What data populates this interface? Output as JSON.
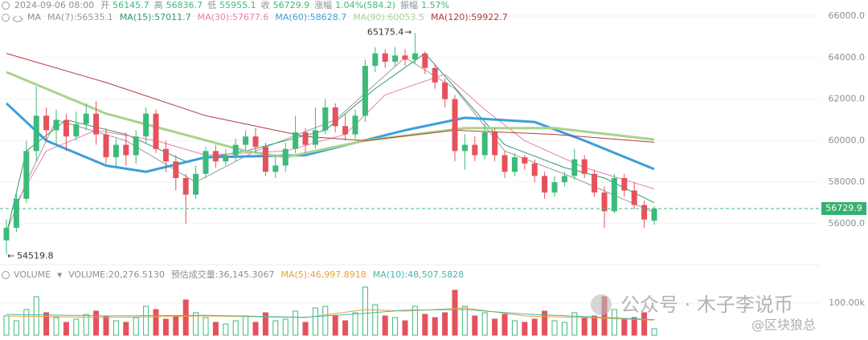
{
  "chart_data": {
    "type": "candlestick",
    "date": "2024-09-06 08:00",
    "quote_labels": [
      "开",
      "高",
      "低",
      "收",
      "涨幅",
      "振幅"
    ],
    "change": "1.04%(584.2)",
    "amplitude": "1.57%",
    "ma_title": "MA",
    "up_color": "#3dba7a",
    "down_color": "#e5525c",
    "candles": {
      "open": [
        55200,
        55800,
        57200,
        59500,
        61200,
        60500,
        61000,
        60200,
        60800,
        61300,
        60300,
        59200,
        59800,
        59300,
        60200,
        61300,
        59600,
        59000,
        58200,
        57400,
        58400,
        59500,
        59000,
        59300,
        59800,
        60200,
        59700,
        58500,
        58800,
        59600,
        60400,
        59800,
        60500,
        61600,
        60700,
        60300,
        61200,
        63600,
        64200,
        63800,
        64100,
        63900,
        64200,
        63500,
        62800,
        62000,
        59500,
        59800,
        59300,
        60400,
        59300,
        58500,
        59200,
        58900,
        58300,
        57500,
        58000,
        58300,
        59100,
        58400,
        57500,
        56600,
        58200,
        57600,
        56900,
        56145.7
      ],
      "high": [
        56200,
        57600,
        60000,
        62600,
        61600,
        61500,
        61300,
        61400,
        61800,
        61900,
        60600,
        60100,
        60400,
        60500,
        61600,
        61500,
        60000,
        59300,
        58400,
        58800,
        59700,
        59800,
        59600,
        60100,
        60500,
        60600,
        59900,
        59300,
        59900,
        61200,
        60600,
        61600,
        62000,
        61800,
        61300,
        61500,
        63900,
        64500,
        64400,
        64500,
        64400,
        65175.4,
        64300,
        63700,
        63000,
        62200,
        60300,
        60200,
        60800,
        60600,
        59500,
        59400,
        59300,
        59100,
        58500,
        58300,
        58500,
        59600,
        59300,
        58600,
        57800,
        58400,
        58400,
        58000,
        57100,
        56836.7
      ],
      "low": [
        54519.8,
        55600,
        57000,
        59000,
        60000,
        59800,
        59500,
        60000,
        60500,
        59800,
        58900,
        58700,
        58800,
        58900,
        59900,
        59400,
        58500,
        57600,
        56000,
        57200,
        58200,
        58700,
        58800,
        59000,
        59500,
        59400,
        58300,
        58200,
        58500,
        59400,
        59400,
        59600,
        60300,
        60400,
        60000,
        60100,
        60900,
        63300,
        63500,
        63600,
        63600,
        63700,
        63200,
        62500,
        61600,
        59000,
        58600,
        59000,
        59100,
        59000,
        58200,
        58300,
        58600,
        58000,
        57200,
        57300,
        57800,
        58100,
        58200,
        57300,
        55800,
        56500,
        57300,
        56700,
        55800,
        55955.1
      ],
      "close": [
        55800,
        57200,
        59500,
        61200,
        60500,
        61000,
        60200,
        60800,
        61300,
        60300,
        59200,
        59800,
        59300,
        60200,
        61300,
        59600,
        59000,
        58200,
        57400,
        58400,
        59500,
        59000,
        59300,
        59800,
        60200,
        59700,
        58500,
        58800,
        59600,
        60400,
        59800,
        60500,
        61600,
        60700,
        60300,
        61200,
        63600,
        64200,
        63800,
        64100,
        63900,
        64200,
        63500,
        62800,
        62000,
        59500,
        59800,
        59300,
        60400,
        59300,
        58500,
        59200,
        58900,
        58300,
        57500,
        58000,
        58300,
        59100,
        58400,
        57500,
        56600,
        58200,
        57600,
        56900,
        56200,
        56729.9
      ]
    },
    "series": [
      {
        "name": "MA(7):56535.1",
        "color": "#9a9a9a",
        "x": [
          0,
          2,
          5,
          12,
          19,
          25,
          33,
          40,
          45,
          50,
          57,
          65
        ],
        "values": [
          55600,
          58000,
          61000,
          60000,
          58000,
          59500,
          61000,
          64000,
          62500,
          59500,
          58200,
          56535.1
        ]
      },
      {
        "name": "MA(15):57011.7",
        "color": "#2e9a6c",
        "x": [
          0,
          2,
          6,
          12,
          18,
          24,
          32,
          37,
          42,
          46,
          50,
          56,
          60,
          65
        ],
        "values": [
          55500,
          59500,
          61000,
          60300,
          59000,
          59500,
          60500,
          62500,
          64200,
          62000,
          59800,
          58700,
          58200,
          57011.7
        ]
      },
      {
        "name": "MA(30):57677.6",
        "color": "#e77fb4",
        "x": [
          1,
          4,
          9,
          15,
          20,
          28,
          34,
          38,
          44,
          48,
          52,
          58,
          65
        ],
        "values": [
          57000,
          59500,
          60500,
          60000,
          59300,
          59500,
          60300,
          62200,
          63200,
          61500,
          60000,
          58700,
          57677.6
        ]
      },
      {
        "name": "MA(60):58628.7",
        "color": "#3a9fdc",
        "x": [
          0,
          4,
          10,
          14,
          20,
          30,
          40,
          46,
          53,
          58,
          65
        ],
        "values": [
          61800,
          60000,
          58800,
          58500,
          59200,
          59300,
          60500,
          61100,
          60900,
          60000,
          58628.7
        ]
      },
      {
        "name": "MA(90):60053.5",
        "color": "#a9d38a",
        "x": [
          0,
          10,
          24,
          28,
          36,
          46,
          55,
          65
        ],
        "values": [
          63300,
          61300,
          59500,
          59200,
          60000,
          60600,
          60600,
          60053.5
        ]
      },
      {
        "name": "MA(120):59922.7",
        "color": "#b23b3e",
        "x": [
          0,
          10,
          20,
          30,
          36,
          45,
          55,
          65
        ],
        "values": [
          64200,
          62800,
          61200,
          60200,
          60000,
          60500,
          60300,
          59922.7
        ]
      }
    ],
    "ylim": [
      54300,
      66772
    ],
    "yticks": [
      {
        "value": 56000,
        "label": "56000.0"
      },
      {
        "value": 58000,
        "label": "58000.0"
      },
      {
        "value": 60000,
        "label": "60000.0"
      },
      {
        "value": 62000,
        "label": "62000.0"
      },
      {
        "value": 64000,
        "label": "64000.0"
      },
      {
        "value": 66000,
        "label": "66000.0"
      }
    ],
    "grid": true,
    "volume": {
      "title": "VOLUME",
      "fields": [
        "VOLUME:20,276.5130",
        "预估成交量:36,145.3067"
      ],
      "values": [
        60000,
        45000,
        80000,
        120000,
        70000,
        55000,
        40000,
        50000,
        65000,
        75000,
        60000,
        45000,
        40000,
        55000,
        90000,
        80000,
        50000,
        60000,
        110000,
        70000,
        55000,
        40000,
        35000,
        45000,
        60000,
        40000,
        70000,
        45000,
        50000,
        75000,
        40000,
        85000,
        90000,
        60000,
        45000,
        70000,
        150000,
        95000,
        60000,
        55000,
        45000,
        90000,
        65000,
        55000,
        70000,
        140000,
        90000,
        60000,
        70000,
        50000,
        65000,
        45000,
        40000,
        50000,
        75000,
        45000,
        40000,
        70000,
        55000,
        60000,
        120000,
        80000,
        50000,
        55000,
        70000,
        20276.513
      ],
      "ylim": [
        0,
        195000
      ],
      "yticks": [
        {
          "value": 100000,
          "label": "100.00k"
        }
      ],
      "series": [
        {
          "name": "MA(5):46,997.8918",
          "color": "#e8a23a",
          "x": [
            0,
            10,
            20,
            30,
            36,
            40,
            46,
            52,
            58,
            65
          ],
          "values": [
            60000,
            55000,
            60000,
            55000,
            80000,
            75000,
            85000,
            60000,
            55000,
            46997.8918
          ]
        },
        {
          "name": "MA(10):48,507.5828",
          "color": "#49b7a8",
          "x": [
            0,
            10,
            20,
            30,
            36,
            40,
            46,
            52,
            58,
            65
          ],
          "values": [
            65000,
            60000,
            62000,
            56000,
            68000,
            78000,
            80000,
            66000,
            58000,
            48507.5828
          ]
        }
      ]
    },
    "watermark": [
      "公众号 · 木子李说币",
      "@区块狼总"
    ]
  }
}
